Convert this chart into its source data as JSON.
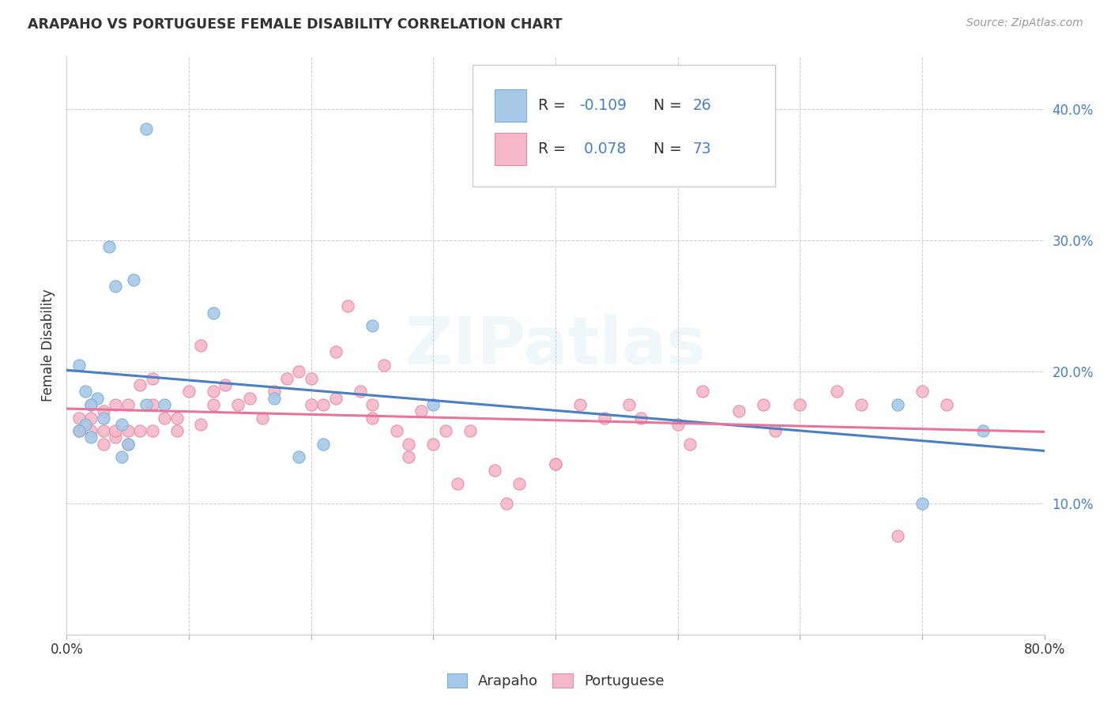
{
  "title": "ARAPAHO VS PORTUGUESE FEMALE DISABILITY CORRELATION CHART",
  "source": "Source: ZipAtlas.com",
  "ylabel": "Female Disability",
  "arapaho_color": "#a8c8e8",
  "arapaho_edge_color": "#7bafd4",
  "portuguese_color": "#f5b8c8",
  "portuguese_edge_color": "#e888a8",
  "arapaho_line_color": "#4a7fc1",
  "portuguese_line_color": "#e8749a",
  "xlim": [
    0.0,
    0.8
  ],
  "ylim": [
    0.0,
    0.44
  ],
  "xtick_positions": [
    0.0,
    0.1,
    0.2,
    0.3,
    0.4,
    0.5,
    0.6,
    0.7,
    0.8
  ],
  "xtick_labels": [
    "0.0%",
    "",
    "",
    "",
    "",
    "",
    "",
    "",
    "80.0%"
  ],
  "ytick_positions": [
    0.1,
    0.2,
    0.3,
    0.4
  ],
  "ytick_labels": [
    "10.0%",
    "20.0%",
    "30.0%",
    "40.0%"
  ],
  "legend_r_label": [
    "R = ",
    "R = "
  ],
  "legend_r_val": [
    "-0.109",
    " 0.078"
  ],
  "legend_n_label": [
    "N = ",
    "N = "
  ],
  "legend_n_val": [
    "26",
    "73"
  ],
  "text_color": "#333333",
  "value_color": "#4a7fc1",
  "watermark": "ZIPatlas",
  "background_color": "#ffffff",
  "grid_color": "#cccccc",
  "arapaho_x": [
    0.015,
    0.035,
    0.065,
    0.04,
    0.025,
    0.02,
    0.015,
    0.01,
    0.03,
    0.045,
    0.05,
    0.065,
    0.055,
    0.12,
    0.17,
    0.19,
    0.25,
    0.21,
    0.3,
    0.68,
    0.7,
    0.75,
    0.045,
    0.02,
    0.01,
    0.08
  ],
  "arapaho_y": [
    0.185,
    0.295,
    0.385,
    0.265,
    0.18,
    0.175,
    0.16,
    0.205,
    0.165,
    0.16,
    0.145,
    0.175,
    0.27,
    0.245,
    0.18,
    0.135,
    0.235,
    0.145,
    0.175,
    0.175,
    0.1,
    0.155,
    0.135,
    0.15,
    0.155,
    0.175
  ],
  "portuguese_x": [
    0.01,
    0.01,
    0.02,
    0.02,
    0.02,
    0.03,
    0.03,
    0.03,
    0.04,
    0.04,
    0.04,
    0.05,
    0.05,
    0.05,
    0.06,
    0.06,
    0.07,
    0.07,
    0.07,
    0.08,
    0.09,
    0.09,
    0.1,
    0.11,
    0.11,
    0.12,
    0.12,
    0.13,
    0.14,
    0.15,
    0.16,
    0.17,
    0.18,
    0.19,
    0.2,
    0.21,
    0.22,
    0.23,
    0.24,
    0.25,
    0.26,
    0.27,
    0.28,
    0.29,
    0.3,
    0.31,
    0.33,
    0.35,
    0.37,
    0.4,
    0.42,
    0.44,
    0.46,
    0.5,
    0.52,
    0.55,
    0.57,
    0.6,
    0.63,
    0.65,
    0.68,
    0.7,
    0.72,
    0.2,
    0.22,
    0.25,
    0.28,
    0.32,
    0.36,
    0.4,
    0.47,
    0.51,
    0.58
  ],
  "portuguese_y": [
    0.155,
    0.165,
    0.155,
    0.165,
    0.175,
    0.145,
    0.155,
    0.17,
    0.15,
    0.155,
    0.175,
    0.145,
    0.155,
    0.175,
    0.155,
    0.19,
    0.155,
    0.175,
    0.195,
    0.165,
    0.155,
    0.165,
    0.185,
    0.16,
    0.22,
    0.175,
    0.185,
    0.19,
    0.175,
    0.18,
    0.165,
    0.185,
    0.195,
    0.2,
    0.175,
    0.175,
    0.215,
    0.25,
    0.185,
    0.175,
    0.205,
    0.155,
    0.145,
    0.17,
    0.145,
    0.155,
    0.155,
    0.125,
    0.115,
    0.13,
    0.175,
    0.165,
    0.175,
    0.16,
    0.185,
    0.17,
    0.175,
    0.175,
    0.185,
    0.175,
    0.075,
    0.185,
    0.175,
    0.195,
    0.18,
    0.165,
    0.135,
    0.115,
    0.1,
    0.13,
    0.165,
    0.145,
    0.155
  ]
}
